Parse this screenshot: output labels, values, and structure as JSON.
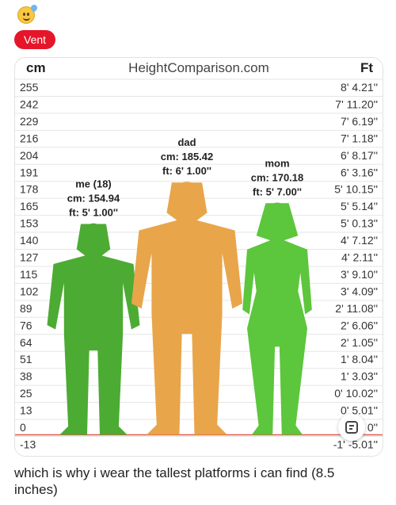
{
  "post": {
    "tag": "Vent",
    "caption": "which is why i wear the tallest platforms i can find (8.5 inches)"
  },
  "chart_data": {
    "type": "height-comparison",
    "title": "HeightComparison.com",
    "left_unit": "cm",
    "right_unit": "Ft",
    "rows": [
      {
        "cm": "255",
        "ft": "8' 4.21''"
      },
      {
        "cm": "242",
        "ft": "7' 11.20''"
      },
      {
        "cm": "229",
        "ft": "7' 6.19''"
      },
      {
        "cm": "216",
        "ft": "7' 1.18''"
      },
      {
        "cm": "204",
        "ft": "6' 8.17''"
      },
      {
        "cm": "191",
        "ft": "6' 3.16''"
      },
      {
        "cm": "178",
        "ft": "5' 10.15''"
      },
      {
        "cm": "165",
        "ft": "5' 5.14''"
      },
      {
        "cm": "153",
        "ft": "5' 0.13''"
      },
      {
        "cm": "140",
        "ft": "4' 7.12''"
      },
      {
        "cm": "127",
        "ft": "4' 2.11''"
      },
      {
        "cm": "115",
        "ft": "3' 9.10''"
      },
      {
        "cm": "102",
        "ft": "3' 4.09''"
      },
      {
        "cm": "89",
        "ft": "2' 11.08''"
      },
      {
        "cm": "76",
        "ft": "2' 6.06''"
      },
      {
        "cm": "64",
        "ft": "2' 1.05''"
      },
      {
        "cm": "51",
        "ft": "1' 8.04''"
      },
      {
        "cm": "38",
        "ft": "1' 3.03''"
      },
      {
        "cm": "25",
        "ft": "0' 10.02''"
      },
      {
        "cm": "13",
        "ft": "0' 5.01''"
      },
      {
        "cm": "0",
        "ft": "0' 0''"
      },
      {
        "cm": "-13",
        "ft": "-1' -5.01''"
      }
    ],
    "people": [
      {
        "name": "me (18)",
        "cm_label": "cm: 154.94",
        "ft_label": "ft: 5' 1.00''",
        "height_cm": 154.94,
        "color": "#4cab33",
        "figure": "male"
      },
      {
        "name": "dad",
        "cm_label": "cm: 185.42",
        "ft_label": "ft: 6' 1.00''",
        "height_cm": 185.42,
        "color": "#e8a54a",
        "figure": "male"
      },
      {
        "name": "mom",
        "cm_label": "cm: 170.18",
        "ft_label": "ft: 5' 7.00''",
        "height_cm": 170.18,
        "color": "#5cc63c",
        "figure": "female"
      }
    ]
  },
  "icons": {
    "reaction": "crying-laughing-emoji-icon",
    "lens": "google-lens-icon"
  }
}
